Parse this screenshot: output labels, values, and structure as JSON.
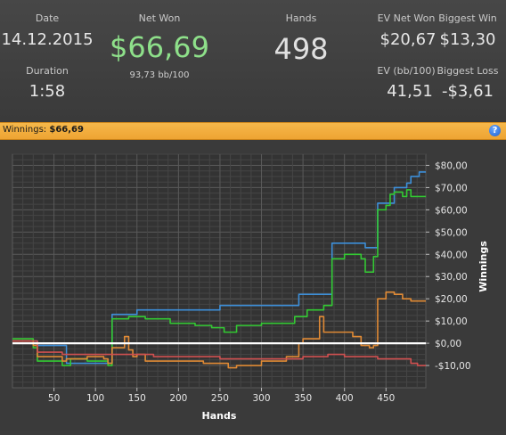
{
  "stats": {
    "date_label": "Date",
    "date_value": "14.12.2015",
    "duration_label": "Duration",
    "duration_value": "1:58",
    "net_won_label": "Net Won",
    "net_won_value": "$66,69",
    "bb_per_100": "93,73 bb/100",
    "hands_label": "Hands",
    "hands_value": "498",
    "ev_net_won_label": "EV Net Won",
    "ev_net_won_value": "$20,67",
    "biggest_win_label": "Biggest Win",
    "biggest_win_value": "$13,30",
    "ev_bb_label": "EV (bb/100)",
    "ev_bb_value": "41,51",
    "biggest_loss_label": "Biggest Loss",
    "biggest_loss_value": "-$3,61"
  },
  "bar": {
    "title_prefix": "Winnings:",
    "title_value": "$66,69",
    "help_icon": "?"
  },
  "colors": {
    "net_won": "#8ee08a",
    "header_bar": "#f0a83a",
    "blue_series": "#3d8fd9",
    "green_series": "#33c933",
    "orange_series": "#e08a35",
    "red_series": "#d05050",
    "zero_line": "#ffffff"
  },
  "chart_data": {
    "type": "line",
    "xlabel": "Hands",
    "ylabel": "Winnings",
    "xlim": [
      0,
      498
    ],
    "ylim": [
      -20,
      85
    ],
    "x_ticks": [
      50,
      100,
      150,
      200,
      250,
      300,
      350,
      400,
      450
    ],
    "y_ticks": [
      {
        "v": 80,
        "label": "$80,00"
      },
      {
        "v": 70,
        "label": "$70,00"
      },
      {
        "v": 60,
        "label": "$60,00"
      },
      {
        "v": 50,
        "label": "$50,00"
      },
      {
        "v": 40,
        "label": "$40,00"
      },
      {
        "v": 30,
        "label": "$30,00"
      },
      {
        "v": 20,
        "label": "$20,00"
      },
      {
        "v": 10,
        "label": "$10,00"
      },
      {
        "v": 0,
        "label": "$0,00"
      },
      {
        "v": -10,
        "label": "-$10,00"
      }
    ],
    "grid": true,
    "series": [
      {
        "color": "#3d8fd9",
        "points": [
          [
            0,
            1
          ],
          [
            20,
            1
          ],
          [
            30,
            -1
          ],
          [
            60,
            -1
          ],
          [
            65,
            -9
          ],
          [
            115,
            -9
          ],
          [
            120,
            13
          ],
          [
            145,
            13
          ],
          [
            150,
            15
          ],
          [
            245,
            15
          ],
          [
            250,
            17
          ],
          [
            340,
            17
          ],
          [
            345,
            22
          ],
          [
            380,
            22
          ],
          [
            385,
            45
          ],
          [
            420,
            45
          ],
          [
            425,
            43
          ],
          [
            435,
            43
          ],
          [
            440,
            63
          ],
          [
            455,
            63
          ],
          [
            460,
            70
          ],
          [
            475,
            72
          ],
          [
            480,
            75
          ],
          [
            488,
            75
          ],
          [
            490,
            77
          ],
          [
            498,
            77
          ]
        ]
      },
      {
        "color": "#33c933",
        "points": [
          [
            0,
            2
          ],
          [
            15,
            2
          ],
          [
            25,
            -2
          ],
          [
            30,
            -8
          ],
          [
            60,
            -10
          ],
          [
            70,
            -7
          ],
          [
            90,
            -8
          ],
          [
            110,
            -8
          ],
          [
            115,
            -10
          ],
          [
            120,
            11
          ],
          [
            135,
            11
          ],
          [
            140,
            12
          ],
          [
            160,
            11
          ],
          [
            190,
            9
          ],
          [
            220,
            8
          ],
          [
            240,
            7
          ],
          [
            255,
            5
          ],
          [
            265,
            5
          ],
          [
            270,
            8
          ],
          [
            300,
            9
          ],
          [
            330,
            9
          ],
          [
            340,
            12
          ],
          [
            355,
            15
          ],
          [
            375,
            17
          ],
          [
            385,
            38
          ],
          [
            400,
            40
          ],
          [
            420,
            38
          ],
          [
            425,
            32
          ],
          [
            435,
            39
          ],
          [
            440,
            60
          ],
          [
            450,
            62
          ],
          [
            455,
            67
          ],
          [
            460,
            68
          ],
          [
            470,
            66
          ],
          [
            475,
            69
          ],
          [
            480,
            66
          ],
          [
            490,
            66
          ],
          [
            498,
            66
          ]
        ]
      },
      {
        "color": "#e08a35",
        "points": [
          [
            0,
            1
          ],
          [
            20,
            1
          ],
          [
            25,
            -1
          ],
          [
            30,
            -6
          ],
          [
            60,
            -8
          ],
          [
            65,
            -7
          ],
          [
            90,
            -6
          ],
          [
            110,
            -7
          ],
          [
            115,
            -9
          ],
          [
            120,
            -2
          ],
          [
            130,
            -2
          ],
          [
            135,
            3
          ],
          [
            140,
            -3
          ],
          [
            145,
            -6
          ],
          [
            150,
            -5
          ],
          [
            160,
            -8
          ],
          [
            200,
            -8
          ],
          [
            230,
            -9
          ],
          [
            260,
            -11
          ],
          [
            270,
            -10
          ],
          [
            300,
            -8
          ],
          [
            320,
            -8
          ],
          [
            330,
            -6
          ],
          [
            345,
            0
          ],
          [
            350,
            2
          ],
          [
            365,
            2
          ],
          [
            370,
            12
          ],
          [
            375,
            5
          ],
          [
            400,
            5
          ],
          [
            410,
            3
          ],
          [
            420,
            -1
          ],
          [
            430,
            -2
          ],
          [
            435,
            -1
          ],
          [
            440,
            20
          ],
          [
            445,
            20
          ],
          [
            450,
            23
          ],
          [
            460,
            22
          ],
          [
            470,
            20
          ],
          [
            480,
            19
          ],
          [
            498,
            19
          ]
        ]
      },
      {
        "color": "#d05050",
        "points": [
          [
            0,
            1
          ],
          [
            20,
            1
          ],
          [
            30,
            -4
          ],
          [
            60,
            -5
          ],
          [
            90,
            -5
          ],
          [
            110,
            -5
          ],
          [
            140,
            -5
          ],
          [
            170,
            -6
          ],
          [
            200,
            -6
          ],
          [
            230,
            -6
          ],
          [
            250,
            -7
          ],
          [
            300,
            -7
          ],
          [
            350,
            -6
          ],
          [
            380,
            -5
          ],
          [
            400,
            -6
          ],
          [
            420,
            -6
          ],
          [
            440,
            -7
          ],
          [
            460,
            -7
          ],
          [
            480,
            -9
          ],
          [
            488,
            -10
          ],
          [
            498,
            -10
          ]
        ]
      }
    ]
  }
}
